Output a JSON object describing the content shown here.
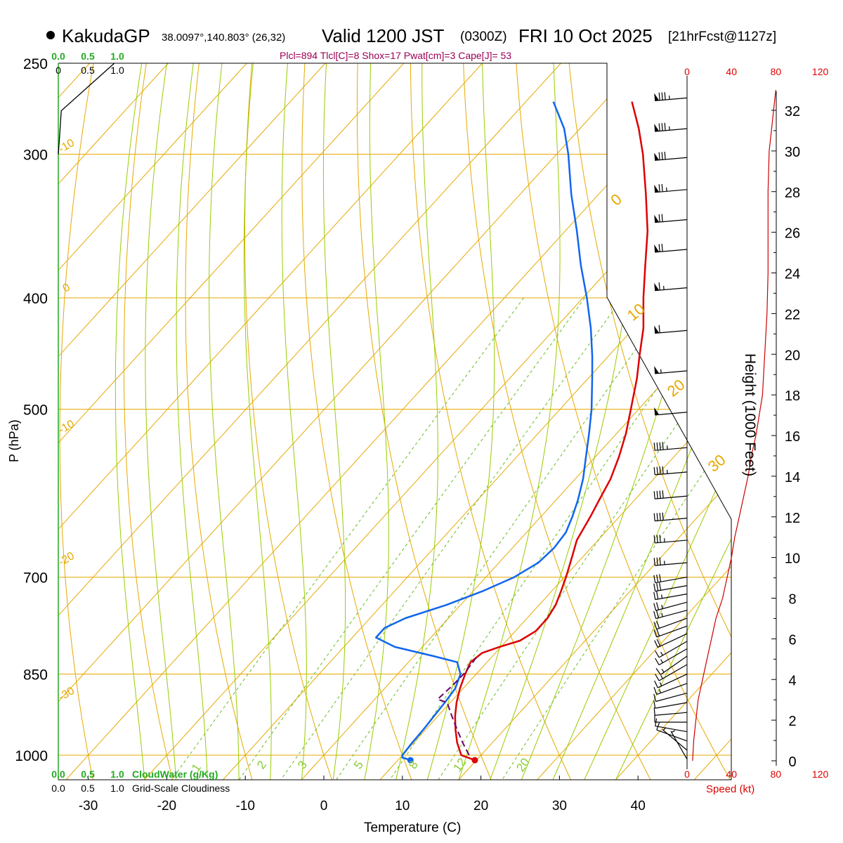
{
  "header": {
    "station": "KakudaGP",
    "coords": "38.0097°,140.803° (26,32)",
    "valid_main": "Valid 1200 JST",
    "valid_z": "(0300Z)",
    "valid_date": "FRI 10 Oct 2025",
    "forecast": "[21hrFcst@1127z]",
    "indices": "Plcl=894 Tlcl[C]=8 Shox=17 Pwat[cm]=3 Cape[J]= 53"
  },
  "colors": {
    "temperature": "#dd0000",
    "dewpoint": "#1166ee",
    "parcel": "#660066",
    "isotherm": "#e6a800",
    "dry_adiabat": "#e6a800",
    "moist_adiabat": "#99cc00",
    "mixing_ratio": "#66bb22",
    "height_profile": "#cc0000",
    "cloud_water": "#22aa22"
  },
  "chart_data": {
    "type": "skew-t",
    "xlabel": "Temperature (C)",
    "ylabel": "P (hPa)",
    "x_ticks": [
      -30,
      -20,
      -10,
      0,
      10,
      20,
      30,
      40
    ],
    "pressure_labels": [
      250,
      300,
      400,
      500,
      700,
      850,
      1000
    ],
    "pressure_range": [
      250,
      1000
    ],
    "temperature": [
      {
        "p": 1010,
        "t": 19.8
      },
      {
        "p": 1000,
        "t": 17.5
      },
      {
        "p": 975,
        "t": 15.5
      },
      {
        "p": 950,
        "t": 13.8
      },
      {
        "p": 925,
        "t": 12.2
      },
      {
        "p": 900,
        "t": 10.8
      },
      {
        "p": 875,
        "t": 9.6
      },
      {
        "p": 850,
        "t": 8.6
      },
      {
        "p": 830,
        "t": 7.9
      },
      {
        "p": 815,
        "t": 8.3
      },
      {
        "p": 805,
        "t": 9.8
      },
      {
        "p": 795,
        "t": 11.7
      },
      {
        "p": 780,
        "t": 12.6
      },
      {
        "p": 760,
        "t": 12.6
      },
      {
        "p": 740,
        "t": 12.1
      },
      {
        "p": 720,
        "t": 11.2
      },
      {
        "p": 700,
        "t": 10.2
      },
      {
        "p": 670,
        "t": 8.5
      },
      {
        "p": 650,
        "t": 7.3
      },
      {
        "p": 620,
        "t": 6.3
      },
      {
        "p": 600,
        "t": 5.5
      },
      {
        "p": 575,
        "t": 4.5
      },
      {
        "p": 550,
        "t": 3.0
      },
      {
        "p": 525,
        "t": 1.2
      },
      {
        "p": 500,
        "t": -1.0
      },
      {
        "p": 470,
        "t": -3.8
      },
      {
        "p": 450,
        "t": -6.0
      },
      {
        "p": 425,
        "t": -8.8
      },
      {
        "p": 400,
        "t": -12.3
      },
      {
        "p": 375,
        "t": -15.8
      },
      {
        "p": 350,
        "t": -19.5
      },
      {
        "p": 325,
        "t": -24.0
      },
      {
        "p": 300,
        "t": -29.0
      },
      {
        "p": 285,
        "t": -32.5
      },
      {
        "p": 270,
        "t": -36.5
      }
    ],
    "dewpoint": [
      {
        "p": 1010,
        "t": 11.6
      },
      {
        "p": 1005,
        "t": 10.3
      },
      {
        "p": 1000,
        "t": 10.0
      },
      {
        "p": 975,
        "t": 9.8
      },
      {
        "p": 950,
        "t": 9.7
      },
      {
        "p": 925,
        "t": 9.5
      },
      {
        "p": 900,
        "t": 9.3
      },
      {
        "p": 875,
        "t": 9.0
      },
      {
        "p": 850,
        "t": 8.0
      },
      {
        "p": 830,
        "t": 6.2
      },
      {
        "p": 820,
        "t": 2.5
      },
      {
        "p": 805,
        "t": -3.5
      },
      {
        "p": 790,
        "t": -7.0
      },
      {
        "p": 775,
        "t": -7.0
      },
      {
        "p": 760,
        "t": -5.5
      },
      {
        "p": 740,
        "t": -1.8
      },
      {
        "p": 720,
        "t": 1.2
      },
      {
        "p": 700,
        "t": 3.6
      },
      {
        "p": 680,
        "t": 5.0
      },
      {
        "p": 660,
        "t": 5.3
      },
      {
        "p": 640,
        "t": 5.0
      },
      {
        "p": 620,
        "t": 4.0
      },
      {
        "p": 600,
        "t": 2.8
      },
      {
        "p": 575,
        "t": 1.0
      },
      {
        "p": 550,
        "t": -1.2
      },
      {
        "p": 525,
        "t": -3.5
      },
      {
        "p": 500,
        "t": -6.0
      },
      {
        "p": 470,
        "t": -9.5
      },
      {
        "p": 450,
        "t": -12.0
      },
      {
        "p": 425,
        "t": -15.5
      },
      {
        "p": 400,
        "t": -19.5
      },
      {
        "p": 375,
        "t": -24.0
      },
      {
        "p": 350,
        "t": -28.5
      },
      {
        "p": 325,
        "t": -33.5
      },
      {
        "p": 300,
        "t": -38.5
      },
      {
        "p": 285,
        "t": -42.0
      },
      {
        "p": 270,
        "t": -46.5
      }
    ],
    "parcel": [
      {
        "p": 1000,
        "t": 18.5
      },
      {
        "p": 975,
        "t": 16.2
      },
      {
        "p": 950,
        "t": 14.0
      },
      {
        "p": 925,
        "t": 11.8
      },
      {
        "p": 900,
        "t": 9.6
      },
      {
        "p": 894,
        "t": 8.0
      },
      {
        "p": 870,
        "t": 8.3
      },
      {
        "p": 850,
        "t": 8.4
      },
      {
        "p": 830,
        "t": 8.2
      },
      {
        "p": 818,
        "t": 8.0
      }
    ],
    "surface_temp_marker": {
      "p": 1010,
      "t": 19.8
    },
    "surface_dewpoint_marker": {
      "p": 1010,
      "t": 11.6
    },
    "isotherm_labels": [
      "-10",
      "0",
      "-10",
      "-20",
      "-30",
      "0",
      "10",
      "20",
      "30"
    ],
    "mixing_ratio_labels": [
      "1",
      "2",
      "3",
      "5",
      "8",
      "12",
      "20"
    ],
    "mixing_ratio_values": [
      1,
      2,
      3,
      5,
      8,
      12,
      20
    ],
    "height_axis": {
      "label": "Height (1000 Feet)",
      "ticks": [
        0,
        2,
        4,
        6,
        8,
        10,
        12,
        14,
        16,
        18,
        20,
        22,
        24,
        26,
        28,
        30,
        32
      ]
    },
    "speed_axis": {
      "label": "Speed (kt)",
      "ticks": [
        0,
        40,
        80,
        120
      ]
    },
    "wind_speed_profile": [
      {
        "h": 0,
        "s": 5
      },
      {
        "h": 1,
        "s": 6
      },
      {
        "h": 2,
        "s": 8
      },
      {
        "h": 3,
        "s": 10
      },
      {
        "h": 4,
        "s": 14
      },
      {
        "h": 5,
        "s": 18
      },
      {
        "h": 6,
        "s": 22
      },
      {
        "h": 7,
        "s": 26
      },
      {
        "h": 8,
        "s": 32
      },
      {
        "h": 9,
        "s": 36
      },
      {
        "h": 10,
        "s": 40
      },
      {
        "h": 11,
        "s": 43
      },
      {
        "h": 12,
        "s": 47
      },
      {
        "h": 13,
        "s": 51
      },
      {
        "h": 14,
        "s": 55
      },
      {
        "h": 15,
        "s": 58
      },
      {
        "h": 16,
        "s": 62
      },
      {
        "h": 17,
        "s": 65
      },
      {
        "h": 18,
        "s": 68
      },
      {
        "h": 20,
        "s": 70
      },
      {
        "h": 22,
        "s": 72
      },
      {
        "h": 24,
        "s": 73
      },
      {
        "h": 26,
        "s": 73
      },
      {
        "h": 28,
        "s": 73
      },
      {
        "h": 30,
        "s": 74
      },
      {
        "h": 31,
        "s": 76
      },
      {
        "h": 32,
        "s": 78
      },
      {
        "h": 33,
        "s": 80
      }
    ],
    "wind_barbs": [
      {
        "p": 268,
        "dir": 265,
        "spd": 85
      },
      {
        "p": 285,
        "dir": 265,
        "spd": 85
      },
      {
        "p": 302,
        "dir": 265,
        "spd": 80
      },
      {
        "p": 322,
        "dir": 265,
        "spd": 75
      },
      {
        "p": 342,
        "dir": 265,
        "spd": 70
      },
      {
        "p": 363,
        "dir": 265,
        "spd": 70
      },
      {
        "p": 392,
        "dir": 265,
        "spd": 65
      },
      {
        "p": 427,
        "dir": 265,
        "spd": 60
      },
      {
        "p": 463,
        "dir": 265,
        "spd": 55
      },
      {
        "p": 503,
        "dir": 265,
        "spd": 50
      },
      {
        "p": 540,
        "dir": 265,
        "spd": 45
      },
      {
        "p": 567,
        "dir": 265,
        "spd": 45
      },
      {
        "p": 595,
        "dir": 265,
        "spd": 40
      },
      {
        "p": 622,
        "dir": 265,
        "spd": 40
      },
      {
        "p": 650,
        "dir": 265,
        "spd": 35
      },
      {
        "p": 680,
        "dir": 265,
        "spd": 35
      },
      {
        "p": 700,
        "dir": 260,
        "spd": 30
      },
      {
        "p": 712,
        "dir": 260,
        "spd": 30
      },
      {
        "p": 724,
        "dir": 260,
        "spd": 25
      },
      {
        "p": 736,
        "dir": 255,
        "spd": 25
      },
      {
        "p": 748,
        "dir": 255,
        "spd": 25
      },
      {
        "p": 760,
        "dir": 250,
        "spd": 20
      },
      {
        "p": 772,
        "dir": 250,
        "spd": 20
      },
      {
        "p": 784,
        "dir": 245,
        "spd": 20
      },
      {
        "p": 796,
        "dir": 240,
        "spd": 15
      },
      {
        "p": 808,
        "dir": 240,
        "spd": 15
      },
      {
        "p": 820,
        "dir": 235,
        "spd": 15
      },
      {
        "p": 834,
        "dir": 240,
        "spd": 15
      },
      {
        "p": 850,
        "dir": 245,
        "spd": 15
      },
      {
        "p": 866,
        "dir": 250,
        "spd": 15
      },
      {
        "p": 883,
        "dir": 255,
        "spd": 10
      },
      {
        "p": 900,
        "dir": 260,
        "spd": 10
      },
      {
        "p": 918,
        "dir": 265,
        "spd": 10
      },
      {
        "p": 936,
        "dir": 270,
        "spd": 10
      },
      {
        "p": 954,
        "dir": 280,
        "spd": 10
      },
      {
        "p": 972,
        "dir": 290,
        "spd": 10
      },
      {
        "p": 990,
        "dir": 310,
        "spd": 5
      },
      {
        "p": 1008,
        "dir": 330,
        "spd": 5
      }
    ],
    "cloud_axes": {
      "cloud_water_label": "CloudWater (g/Kg)",
      "cloudiness_label": "Grid-Scale Cloudiness",
      "ticks": [
        "0.0",
        "0.5",
        "1.0"
      ],
      "ticks_black": [
        "0.0",
        "0.5",
        "1.0"
      ],
      "top_ticks": [
        "0.0",
        "0.5",
        "1.0"
      ],
      "top_ticks_black": [
        "0",
        "0.5",
        "1.0"
      ]
    },
    "cloudiness_profile": [
      {
        "p": 250,
        "v": 0.95
      },
      {
        "p": 275,
        "v": 0.05
      },
      {
        "p": 290,
        "v": 0.02
      },
      {
        "p": 300,
        "v": 0.0
      }
    ]
  }
}
